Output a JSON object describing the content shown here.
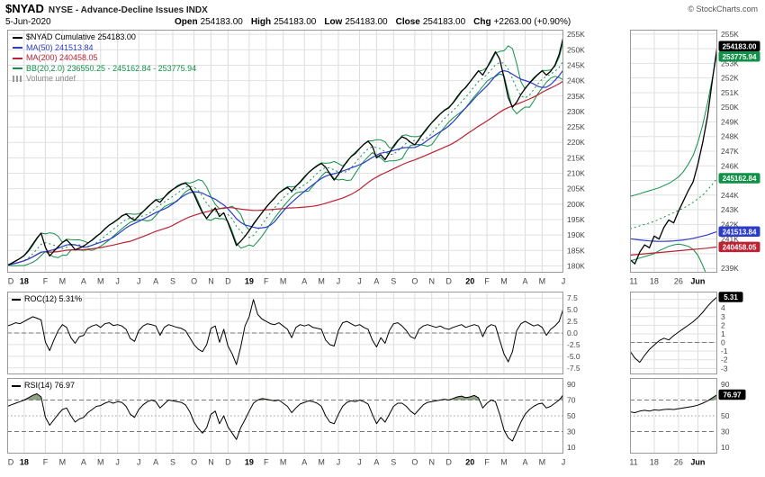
{
  "header": {
    "symbol": "$NYAD",
    "name": "NYSE - Advance-Decline Issues INDX",
    "copyright": "© StockCharts.com",
    "date": "5-Jun-2020",
    "quote": [
      {
        "label": "Open",
        "value": "254183.00"
      },
      {
        "label": "High",
        "value": "254183.00"
      },
      {
        "label": "Low",
        "value": "254183.00"
      },
      {
        "label": "Close",
        "value": "254183.00"
      },
      {
        "label": "Chg",
        "value": "+2263.00 (+0.90%)"
      }
    ]
  },
  "legend": {
    "items": [
      {
        "text": "$NYAD Cumulative 254183.00",
        "color_key": "price",
        "swatch": "line"
      },
      {
        "text": "MA(50) 241513.84",
        "color_key": "ma50",
        "swatch": "line"
      },
      {
        "text": "MA(200) 240458.05",
        "color_key": "ma200",
        "swatch": "line"
      },
      {
        "text": "BB(20,2.0) 236550.25 - 245162.84 - 253775.94",
        "color_key": "bb",
        "swatch": "line"
      },
      {
        "text": "Volume undef",
        "color_key": "volume",
        "swatch": "bars"
      }
    ]
  },
  "panels": {
    "roc_label": "ROC(12) 5.31%",
    "rsi_label": "RSI(14) 76.97"
  },
  "colors": {
    "price": "#000000",
    "ma50": "#2a3cc8",
    "ma200": "#bb2233",
    "bb": "#0f9147",
    "volume": "#888888",
    "rsi_fill": "#7d9070"
  },
  "chart_data": {
    "type": "line",
    "unit": "index value in thousands (K); main/roc/rsi weekly Dec-2017 to 5-Jun-2020, insets daily 11-May to 5-Jun-2020",
    "main": {
      "ylim": [
        177.8,
        256.5
      ],
      "y_ticks": [
        255,
        250,
        245,
        240,
        235,
        230,
        225,
        220,
        215,
        210,
        205,
        200,
        195,
        190,
        185,
        180
      ],
      "x_ticks": [
        {
          "l": "D",
          "p": 0
        },
        {
          "l": "18",
          "p": 4,
          "b": 1
        },
        {
          "l": "F",
          "p": 9
        },
        {
          "l": "M",
          "p": 13
        },
        {
          "l": "A",
          "p": 18
        },
        {
          "l": "M",
          "p": 22
        },
        {
          "l": "J",
          "p": 26
        },
        {
          "l": "J",
          "p": 31
        },
        {
          "l": "A",
          "p": 35
        },
        {
          "l": "S",
          "p": 39
        },
        {
          "l": "O",
          "p": 44
        },
        {
          "l": "N",
          "p": 48
        },
        {
          "l": "D",
          "p": 52
        },
        {
          "l": "19",
          "p": 57,
          "b": 1
        },
        {
          "l": "F",
          "p": 61
        },
        {
          "l": "M",
          "p": 65
        },
        {
          "l": "A",
          "p": 70
        },
        {
          "l": "M",
          "p": 74
        },
        {
          "l": "J",
          "p": 78
        },
        {
          "l": "J",
          "p": 83
        },
        {
          "l": "A",
          "p": 87
        },
        {
          "l": "S",
          "p": 91
        },
        {
          "l": "O",
          "p": 96
        },
        {
          "l": "N",
          "p": 100
        },
        {
          "l": "D",
          "p": 104
        },
        {
          "l": "20",
          "p": 109,
          "b": 1
        },
        {
          "l": "F",
          "p": 113
        },
        {
          "l": "M",
          "p": 117
        },
        {
          "l": "A",
          "p": 122
        },
        {
          "l": "M",
          "p": 126
        },
        {
          "l": "J",
          "p": 131
        }
      ],
      "values": [
        180.2,
        180.8,
        181.6,
        182.4,
        183.4,
        185.0,
        187.0,
        189.0,
        190.6,
        186.0,
        183.2,
        184.8,
        186.2,
        187.6,
        188.4,
        187.0,
        185.2,
        185.8,
        186.4,
        187.4,
        188.4,
        189.6,
        190.6,
        192.0,
        193.2,
        194.0,
        195.0,
        196.2,
        196.8,
        195.6,
        194.8,
        196.2,
        197.6,
        199.0,
        200.2,
        201.4,
        200.6,
        202.2,
        203.8,
        204.8,
        205.6,
        206.4,
        206.8,
        205.6,
        203.2,
        200.0,
        197.2,
        195.4,
        197.2,
        198.8,
        196.0,
        197.2,
        194.0,
        190.4,
        186.6,
        188.0,
        189.6,
        191.4,
        193.6,
        195.4,
        197.2,
        199.0,
        200.6,
        202.0,
        203.6,
        204.6,
        205.4,
        204.2,
        205.8,
        207.2,
        208.8,
        210.2,
        211.4,
        212.4,
        213.2,
        212.0,
        209.8,
        207.8,
        209.6,
        211.8,
        213.8,
        215.4,
        216.4,
        218.0,
        219.4,
        220.4,
        218.8,
        215.0,
        216.0,
        214.4,
        216.6,
        218.8,
        220.6,
        221.8,
        221.2,
        220.0,
        219.2,
        221.0,
        223.0,
        224.8,
        226.4,
        227.8,
        229.2,
        230.4,
        231.2,
        232.8,
        234.8,
        236.6,
        237.8,
        239.6,
        241.4,
        243.2,
        241.8,
        244.2,
        246.8,
        249.4,
        247.0,
        241.0,
        234.5,
        231.4,
        233.0,
        235.5,
        237.5,
        239.2,
        240.6,
        242.0,
        243.2,
        241.8,
        243.0,
        245.0,
        248.5,
        254.18
      ]
    },
    "inset": {
      "ylim": [
        238.7,
        255.3
      ],
      "y_ticks": [
        255,
        254,
        253,
        252,
        251,
        250,
        249,
        248,
        247,
        246,
        245,
        244,
        243,
        242,
        241,
        240,
        239
      ],
      "x_ticks": [
        {
          "l": "11",
          "p": 0
        },
        {
          "l": "18",
          "p": 5
        },
        {
          "l": "26",
          "p": 10
        },
        {
          "l": "Jun",
          "p": 14,
          "b": 1
        }
      ],
      "series": {
        "close": [
          239.6,
          239.3,
          240.1,
          240.6,
          240.4,
          241.2,
          241.0,
          241.8,
          242.3,
          242.1,
          242.9,
          243.6,
          244.3,
          244.9,
          246.1,
          247.6,
          249.4,
          251.9,
          254.18
        ],
        "ma50": [
          241.02,
          240.98,
          240.94,
          240.9,
          240.87,
          240.85,
          240.84,
          240.84,
          240.85,
          240.87,
          240.9,
          240.94,
          240.99,
          241.05,
          241.12,
          241.2,
          241.29,
          241.4,
          241.51
        ],
        "ma200": [
          239.9,
          239.93,
          239.96,
          239.99,
          240.02,
          240.05,
          240.08,
          240.11,
          240.14,
          240.17,
          240.2,
          240.23,
          240.26,
          240.29,
          240.32,
          240.35,
          240.38,
          240.42,
          240.46
        ],
        "bb_up": [
          243.9,
          244.0,
          244.1,
          244.2,
          244.3,
          244.4,
          244.5,
          244.65,
          244.8,
          245.0,
          245.25,
          245.6,
          246.1,
          246.7,
          247.6,
          248.8,
          250.3,
          252.0,
          253.78
        ],
        "bb_mid": [
          241.7,
          241.8,
          241.9,
          242.0,
          242.1,
          242.2,
          242.35,
          242.5,
          242.65,
          242.8,
          242.95,
          243.1,
          243.3,
          243.5,
          243.75,
          244.0,
          244.35,
          244.75,
          245.16
        ],
        "bb_low": [
          239.5,
          239.6,
          239.7,
          239.8,
          239.9,
          240.0,
          240.2,
          240.35,
          240.5,
          240.6,
          240.65,
          240.6,
          240.5,
          240.3,
          239.9,
          239.2,
          238.4,
          237.5,
          236.55
        ]
      },
      "price_labels": [
        {
          "text": "254183.00",
          "value": 254.18,
          "color_key": "price"
        },
        {
          "text": "253775.94",
          "value": 253.78,
          "color_key": "bb"
        },
        {
          "text": "245162.84",
          "value": 245.16,
          "color_key": "bb"
        },
        {
          "text": "241513.84",
          "value": 241.51,
          "color_key": "ma50"
        },
        {
          "text": "240458.05",
          "value": 240.46,
          "color_key": "ma200"
        }
      ]
    },
    "roc": {
      "ylim": [
        -8.9,
        8.9
      ],
      "y_ticks": [
        7.5,
        5,
        2.5,
        0,
        -2.5,
        -5,
        -7.5
      ],
      "values": [
        1.5,
        1.8,
        2.2,
        2.0,
        2.5,
        3.0,
        3.5,
        3.2,
        2.8,
        -2.0,
        -3.8,
        -1.5,
        0.5,
        1.8,
        1.2,
        -1.0,
        -2.2,
        -0.8,
        -0.5,
        1.0,
        1.5,
        1.8,
        1.2,
        2.0,
        2.2,
        1.6,
        1.8,
        1.5,
        0.8,
        -1.2,
        -1.8,
        0.5,
        1.5,
        2.0,
        1.8,
        1.5,
        -0.5,
        1.2,
        1.8,
        1.5,
        1.2,
        1.0,
        0.5,
        -1.0,
        -2.5,
        -3.5,
        -4.0,
        -2.5,
        1.0,
        1.5,
        -2.0,
        0.8,
        -2.8,
        -4.5,
        -6.8,
        -3.0,
        1.5,
        3.5,
        7.2,
        4.0,
        3.0,
        2.5,
        2.0,
        1.8,
        2.2,
        1.5,
        0.8,
        -1.0,
        1.2,
        1.8,
        1.5,
        1.8,
        1.2,
        1.0,
        0.8,
        -1.5,
        -2.5,
        -2.8,
        0.5,
        2.2,
        2.5,
        2.0,
        1.5,
        1.8,
        1.2,
        0.8,
        -1.5,
        -3.0,
        -1.0,
        -2.2,
        0.5,
        2.0,
        2.2,
        1.5,
        0.5,
        -0.8,
        -1.2,
        0.8,
        1.5,
        1.8,
        1.5,
        1.2,
        1.5,
        1.0,
        0.8,
        1.2,
        1.5,
        1.8,
        1.2,
        1.5,
        1.8,
        1.5,
        -0.8,
        1.2,
        1.8,
        1.5,
        -1.5,
        -4.5,
        -6.2,
        -4.0,
        0.5,
        2.0,
        2.5,
        2.0,
        1.5,
        1.8,
        1.2,
        -0.5,
        0.8,
        1.5,
        2.5,
        5.31
      ]
    },
    "roc_inset": {
      "ylim": [
        -3.7,
        5.9
      ],
      "y_ticks": [
        5,
        4,
        3,
        2,
        1,
        0,
        -1,
        -2,
        -3
      ],
      "values": [
        -1.0,
        -1.8,
        -2.3,
        -1.5,
        -0.8,
        -0.3,
        0.2,
        0.5,
        0.3,
        0.8,
        1.2,
        1.6,
        2.0,
        2.4,
        2.9,
        3.5,
        4.2,
        4.8,
        5.31
      ],
      "label": {
        "text": "5.31",
        "value": 5.31
      }
    },
    "rsi": {
      "ylim": [
        2,
        98
      ],
      "y_ticks": [
        90,
        70,
        50,
        30,
        10
      ],
      "values": [
        62,
        64,
        66,
        68,
        70,
        73,
        76,
        78,
        74,
        48,
        38,
        45,
        52,
        58,
        60,
        50,
        42,
        46,
        48,
        54,
        58,
        62,
        63,
        66,
        68,
        66,
        68,
        67,
        62,
        52,
        48,
        58,
        64,
        68,
        70,
        68,
        60,
        65,
        70,
        69,
        68,
        67,
        64,
        55,
        42,
        34,
        28,
        35,
        52,
        56,
        40,
        50,
        36,
        28,
        20,
        35,
        45,
        56,
        66,
        70,
        72,
        71,
        70,
        69,
        70,
        66,
        62,
        54,
        60,
        65,
        67,
        69,
        68,
        66,
        62,
        50,
        42,
        40,
        52,
        62,
        67,
        69,
        68,
        70,
        68,
        65,
        52,
        40,
        48,
        42,
        52,
        62,
        66,
        66,
        62,
        56,
        52,
        58,
        64,
        67,
        68,
        69,
        70,
        71,
        70,
        72,
        74,
        75,
        73,
        74,
        76,
        73,
        60,
        66,
        70,
        68,
        52,
        32,
        22,
        18,
        30,
        42,
        52,
        58,
        62,
        65,
        66,
        60,
        62,
        66,
        70,
        76.97
      ]
    },
    "rsi_inset": {
      "ylim": [
        2,
        98
      ],
      "y_ticks": [
        90,
        70,
        50,
        30,
        10
      ],
      "values": [
        55,
        54,
        56,
        57,
        56,
        57.5,
        57,
        58,
        58.5,
        58,
        59,
        60,
        61,
        62,
        63.5,
        66,
        69,
        73,
        76.97
      ],
      "label": {
        "text": "76.97",
        "value": 76.97
      }
    }
  }
}
